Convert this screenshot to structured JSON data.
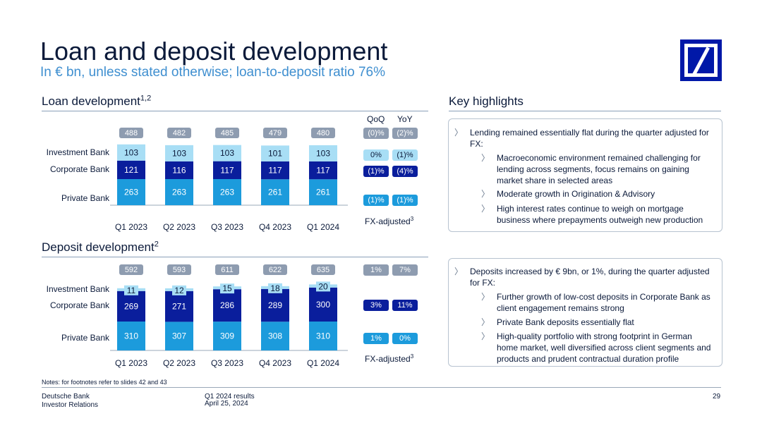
{
  "title": "Loan and deposit development",
  "subtitle": "In € bn, unless stated otherwise; loan-to-deposit ratio 76%",
  "loan_section": {
    "heading": "Loan development",
    "sup": "1,2"
  },
  "deposit_section": {
    "heading": "Deposit development",
    "sup": "2"
  },
  "highlights_heading": "Key highlights",
  "qoq_label": "QoQ",
  "yoy_label": "YoY",
  "fx_label": "FX-adjusted",
  "fx_sup": "3",
  "colors": {
    "private": "#1c9bdc",
    "corporate": "#0a1e9c",
    "investment": "#a8def5",
    "total_chip": "#8e9cb0"
  },
  "chart_data": [
    {
      "type": "bar",
      "name": "loan",
      "categories": [
        "Q1 2023",
        "Q2 2023",
        "Q3 2023",
        "Q4 2023",
        "Q1 2024"
      ],
      "series": [
        {
          "name": "Private Bank",
          "values": [
            263,
            263,
            263,
            261,
            261
          ]
        },
        {
          "name": "Corporate Bank",
          "values": [
            121,
            116,
            117,
            117,
            117
          ]
        },
        {
          "name": "Investment Bank",
          "values": [
            103,
            103,
            103,
            101,
            103
          ]
        }
      ],
      "totals": [
        488,
        482,
        485,
        479,
        480
      ],
      "changes": {
        "total": {
          "qoq": "(0)%",
          "yoy": "(2)%"
        },
        "Investment Bank": {
          "qoq": "0%",
          "yoy": "(1)%"
        },
        "Corporate Bank": {
          "qoq": "(1)%",
          "yoy": "(4)%"
        },
        "Private Bank": {
          "qoq": "(1)%",
          "yoy": "(1)%"
        }
      },
      "stacked": true
    },
    {
      "type": "bar",
      "name": "deposit",
      "categories": [
        "Q1 2023",
        "Q2 2023",
        "Q3 2023",
        "Q4 2023",
        "Q1 2024"
      ],
      "series": [
        {
          "name": "Private Bank",
          "values": [
            310,
            307,
            309,
            308,
            310
          ]
        },
        {
          "name": "Corporate Bank",
          "values": [
            269,
            271,
            286,
            289,
            300
          ]
        },
        {
          "name": "Investment Bank",
          "values": [
            11,
            12,
            15,
            18,
            20
          ]
        }
      ],
      "totals": [
        592,
        593,
        611,
        622,
        635
      ],
      "changes": {
        "total": {
          "qoq": "1%",
          "yoy": "7%"
        },
        "Corporate Bank": {
          "qoq": "3%",
          "yoy": "11%"
        },
        "Private Bank": {
          "qoq": "1%",
          "yoy": "0%"
        }
      },
      "stacked": true
    }
  ],
  "loan_highlights": {
    "main": "Lending remained essentially flat during the quarter adjusted for FX:",
    "subs": [
      "Macroeconomic environment remained challenging for lending across segments, focus remains on gaining market share in selected areas",
      "Moderate growth in Origination & Advisory",
      "High interest rates continue to weigh on mortgage business where prepayments outweigh new production"
    ]
  },
  "deposit_highlights": {
    "main": "Deposits increased by € 9bn, or 1%, during the quarter adjusted for FX:",
    "subs": [
      "Further growth of low-cost deposits in Corporate Bank as client engagement remains strong",
      "Private Bank deposits essentially flat",
      "High-quality portfolio with strong footprint in German home market, well diversified across client segments and products and prudent contractual duration profile"
    ]
  },
  "marker": "〉",
  "notes": "Notes: for footnotes refer to slides 42 and 43",
  "footer": {
    "company": "Deutsche Bank",
    "dept": "Investor Relations",
    "doc": "Q1 2024 results",
    "date": "April 25, 2024",
    "page": "29"
  }
}
